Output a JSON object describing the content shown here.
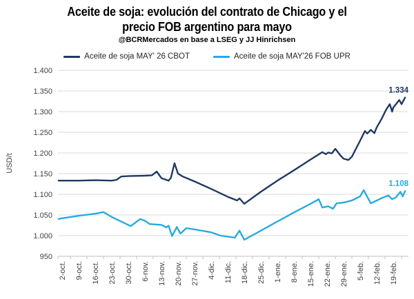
{
  "chart_data": {
    "type": "line",
    "title_line1": "Aceite de soja: evolución del contrato de Chicago y el",
    "title_line2": "precio FOB argentino para mayo",
    "subtitle": "@BCRMercados en base a LSEG y JJ Hinrichsen",
    "ylabel": "USD/t",
    "ylim": [
      950,
      1400
    ],
    "grid": true,
    "legend_position": "top",
    "y_ticks": [
      {
        "v": 950,
        "label": "950"
      },
      {
        "v": 1000,
        "label": "1.000"
      },
      {
        "v": 1050,
        "label": "1.050"
      },
      {
        "v": 1100,
        "label": "1.100"
      },
      {
        "v": 1150,
        "label": "1.150"
      },
      {
        "v": 1200,
        "label": "1.200"
      },
      {
        "v": 1250,
        "label": "1.250"
      },
      {
        "v": 1300,
        "label": "1.300"
      },
      {
        "v": 1350,
        "label": "1.350"
      },
      {
        "v": 1400,
        "label": "1.400"
      }
    ],
    "x_ticks": [
      {
        "day": 0,
        "label": "2-oct."
      },
      {
        "day": 7,
        "label": "9-oct."
      },
      {
        "day": 14,
        "label": "16-oct."
      },
      {
        "day": 21,
        "label": "23-oct."
      },
      {
        "day": 28,
        "label": "30-oct."
      },
      {
        "day": 35,
        "label": "6-nov."
      },
      {
        "day": 42,
        "label": "13-nov."
      },
      {
        "day": 49,
        "label": "20-nov."
      },
      {
        "day": 56,
        "label": "27-nov."
      },
      {
        "day": 63,
        "label": "4-dic."
      },
      {
        "day": 70,
        "label": "11-dic."
      },
      {
        "day": 77,
        "label": "18-dic."
      },
      {
        "day": 84,
        "label": "25-dic."
      },
      {
        "day": 91,
        "label": "1-ene."
      },
      {
        "day": 98,
        "label": "8-ene."
      },
      {
        "day": 105,
        "label": "15-ene."
      },
      {
        "day": 112,
        "label": "22-ene."
      },
      {
        "day": 119,
        "label": "29-ene."
      },
      {
        "day": 126,
        "label": "5-feb."
      },
      {
        "day": 133,
        "label": "12-feb."
      },
      {
        "day": 140,
        "label": "19-feb."
      }
    ],
    "series": [
      {
        "name": "Aceite de soja MAY' 26 CBOT",
        "color": "#1f3864",
        "end_label": "1.334",
        "points": [
          [
            -1.5,
            1133
          ],
          [
            0,
            1133
          ],
          [
            7,
            1133
          ],
          [
            14,
            1134
          ],
          [
            21,
            1133
          ],
          [
            23,
            1135
          ],
          [
            25,
            1143
          ],
          [
            28,
            1144
          ],
          [
            35,
            1145
          ],
          [
            38,
            1146
          ],
          [
            40,
            1155
          ],
          [
            42,
            1139
          ],
          [
            45,
            1133
          ],
          [
            46,
            1140
          ],
          [
            47.5,
            1175
          ],
          [
            49,
            1150
          ],
          [
            51,
            1143
          ],
          [
            56,
            1131
          ],
          [
            63,
            1113
          ],
          [
            70,
            1094
          ],
          [
            74,
            1085
          ],
          [
            75,
            1090
          ],
          [
            77,
            1077
          ],
          [
            84,
            1106
          ],
          [
            91,
            1133
          ],
          [
            98,
            1158
          ],
          [
            105,
            1184
          ],
          [
            110,
            1202
          ],
          [
            111.5,
            1197
          ],
          [
            112.5,
            1201
          ],
          [
            114,
            1199
          ],
          [
            115.5,
            1210
          ],
          [
            117.5,
            1195
          ],
          [
            119,
            1186
          ],
          [
            121,
            1183
          ],
          [
            122.5,
            1191
          ],
          [
            126,
            1230
          ],
          [
            128,
            1253
          ],
          [
            129,
            1247
          ],
          [
            130.5,
            1256
          ],
          [
            132,
            1248
          ],
          [
            133,
            1262
          ],
          [
            135,
            1282
          ],
          [
            137,
            1305
          ],
          [
            138.5,
            1318
          ],
          [
            139.5,
            1300
          ],
          [
            140,
            1310
          ],
          [
            142.5,
            1328
          ],
          [
            143.5,
            1318
          ],
          [
            145,
            1334
          ]
        ]
      },
      {
        "name": "Aceite de soja MAY'26 FOB UPR",
        "color": "#27aae1",
        "end_label": "1.108",
        "points": [
          [
            -1.5,
            1040
          ],
          [
            0,
            1042
          ],
          [
            7,
            1048
          ],
          [
            14,
            1053
          ],
          [
            17.5,
            1057
          ],
          [
            21,
            1045
          ],
          [
            29,
            1023
          ],
          [
            33,
            1040
          ],
          [
            35,
            1036
          ],
          [
            37,
            1028
          ],
          [
            42,
            1026
          ],
          [
            44,
            1020
          ],
          [
            45,
            1024
          ],
          [
            46.5,
            999
          ],
          [
            48.5,
            1021
          ],
          [
            50,
            1005
          ],
          [
            51,
            1010
          ],
          [
            52.5,
            1018
          ],
          [
            56,
            1015
          ],
          [
            63,
            1008
          ],
          [
            67,
            1000
          ],
          [
            73,
            995
          ],
          [
            75,
            1012
          ],
          [
            77,
            990
          ],
          [
            84,
            1012
          ],
          [
            91,
            1034
          ],
          [
            98,
            1056
          ],
          [
            105,
            1077
          ],
          [
            108.5,
            1088
          ],
          [
            110,
            1068
          ],
          [
            112.5,
            1071
          ],
          [
            114.5,
            1065
          ],
          [
            116,
            1078
          ],
          [
            119,
            1080
          ],
          [
            122.5,
            1085
          ],
          [
            126,
            1095
          ],
          [
            127.5,
            1110
          ],
          [
            130.5,
            1078
          ],
          [
            133,
            1085
          ],
          [
            136,
            1093
          ],
          [
            138,
            1097
          ],
          [
            139.5,
            1088
          ],
          [
            141,
            1092
          ],
          [
            143,
            1106
          ],
          [
            144,
            1095
          ],
          [
            145,
            1108
          ]
        ]
      }
    ]
  },
  "colors": {
    "grid": "#d9d9d9",
    "axis": "#bfbfbf",
    "tick_text": "#3f3f3f",
    "title_text": "#000000"
  }
}
